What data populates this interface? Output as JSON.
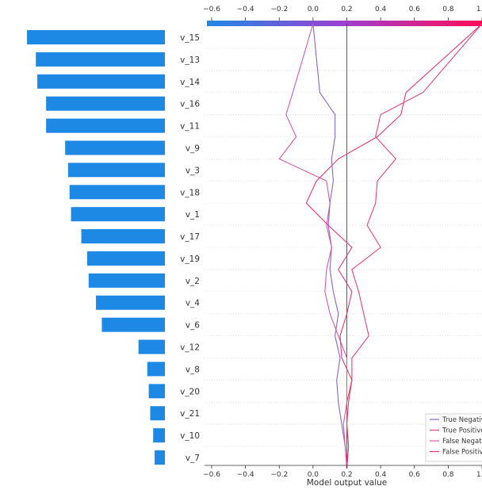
{
  "chart_data": {
    "type": "line",
    "xlabel": "Model output value",
    "xlim": [
      -0.6,
      1.0
    ],
    "x_ticks": [
      "−0.6",
      "−0.4",
      "−0.2",
      "0.0",
      "0.2",
      "0.4",
      "0.6",
      "0.8",
      "1.0"
    ],
    "x_tick_values": [
      -0.6,
      -0.4,
      -0.2,
      0.0,
      0.2,
      0.4,
      0.6,
      0.8,
      1.0
    ],
    "base_value": 0.2,
    "features": [
      "v_15",
      "v_13",
      "v_14",
      "v_16",
      "v_11",
      "v_9",
      "v_3",
      "v_18",
      "v_1",
      "v_17",
      "v_19",
      "v_2",
      "v_4",
      "v_6",
      "v_12",
      "v_8",
      "v_20",
      "v_21",
      "v_10",
      "v_7"
    ],
    "importance_bars": [
      0.94,
      0.88,
      0.87,
      0.81,
      0.81,
      0.68,
      0.66,
      0.65,
      0.64,
      0.57,
      0.53,
      0.52,
      0.47,
      0.43,
      0.18,
      0.12,
      0.11,
      0.1,
      0.08,
      0.07
    ],
    "importance_bar_color": "#1e88e5",
    "colorbar": {
      "low_color": "#1e88e5",
      "high_color": "#ff0d57"
    },
    "legend": {
      "placement": "bottom-right",
      "entries": [
        {
          "label": "True Negative",
          "color": "#8a63c8"
        },
        {
          "label": "True Positive",
          "color": "#e0457b"
        },
        {
          "label": "False Negative",
          "color": "#d05ca8"
        },
        {
          "label": "False Positive",
          "color": "#e03a73"
        }
      ]
    },
    "series": [
      {
        "name": "True Negative",
        "color": "#8a63c8",
        "values": [
          0.2,
          0.2,
          0.19,
          0.17,
          0.15,
          0.14,
          0.16,
          0.13,
          0.15,
          0.12,
          0.1,
          0.11,
          0.09,
          0.1,
          0.12,
          0.11,
          0.13,
          0.13,
          0.04,
          0.0
        ]
      },
      {
        "name": "True Positive",
        "color": "#e0457b",
        "values": [
          0.2,
          0.2,
          0.21,
          0.2,
          0.2,
          0.23,
          0.23,
          0.33,
          0.3,
          0.27,
          0.23,
          0.4,
          0.32,
          0.37,
          0.38,
          0.49,
          0.37,
          0.4,
          0.65,
          1.0
        ]
      },
      {
        "name": "False Negative",
        "color": "#d05ca8",
        "values": [
          0.2,
          0.2,
          0.19,
          0.18,
          0.2,
          0.2,
          0.2,
          0.15,
          0.1,
          0.07,
          0.08,
          0.11,
          0.08,
          0.1,
          0.08,
          -0.2,
          -0.1,
          -0.16,
          -0.12,
          0.0
        ]
      },
      {
        "name": "False Positive",
        "color": "#e03a73",
        "values": [
          0.2,
          0.2,
          0.21,
          0.2,
          0.21,
          0.23,
          0.17,
          0.16,
          0.2,
          0.23,
          0.15,
          0.23,
          0.09,
          -0.04,
          0.02,
          0.15,
          0.38,
          0.52,
          0.55,
          1.0
        ]
      }
    ]
  }
}
